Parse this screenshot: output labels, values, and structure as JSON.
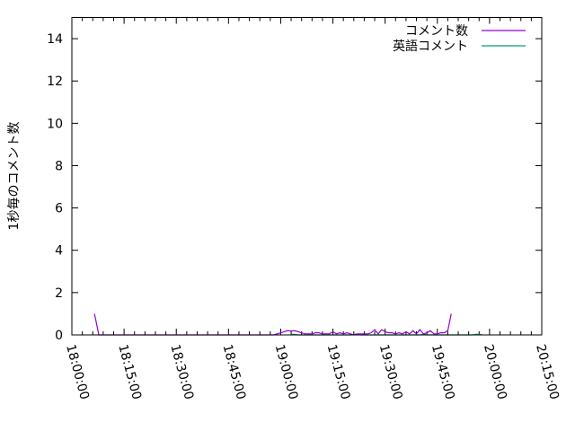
{
  "chart_data": {
    "type": "line",
    "title": "",
    "xlabel": "",
    "ylabel": "1秒毎のコメント数",
    "xlim": [
      "18:00:00",
      "20:15:00"
    ],
    "ylim": [
      0,
      15
    ],
    "x_ticks": [
      "18:00:00",
      "18:15:00",
      "18:30:00",
      "18:45:00",
      "19:00:00",
      "19:15:00",
      "19:30:00",
      "19:45:00",
      "20:00:00",
      "20:15:00"
    ],
    "y_ticks": [
      "0",
      "2",
      "4",
      "6",
      "8",
      "10",
      "12",
      "14"
    ],
    "grid": false,
    "legend_position": "top-right",
    "series": [
      {
        "name": "コメント数",
        "color": "#9400d3",
        "points": [
          [
            "18:06:30",
            1
          ],
          [
            "18:07:45",
            0
          ],
          [
            "18:58:00",
            0
          ],
          [
            "18:59:00",
            0.05
          ],
          [
            "19:00:00",
            0.1
          ],
          [
            "19:01:00",
            0.15
          ],
          [
            "19:02:00",
            0.2
          ],
          [
            "19:03:00",
            0.18
          ],
          [
            "19:04:00",
            0.2
          ],
          [
            "19:05:00",
            0.15
          ],
          [
            "19:06:00",
            0.1
          ],
          [
            "19:07:00",
            0.05
          ],
          [
            "19:08:00",
            0.05
          ],
          [
            "19:09:00",
            0.05
          ],
          [
            "19:10:00",
            0.1
          ],
          [
            "19:11:00",
            0.1
          ],
          [
            "19:12:00",
            0.05
          ],
          [
            "19:13:00",
            0.05
          ],
          [
            "19:14:00",
            0.05
          ],
          [
            "19:15:00",
            0.15
          ],
          [
            "19:16:00",
            0.05
          ],
          [
            "19:17:00",
            0.1
          ],
          [
            "19:18:00",
            0.05
          ],
          [
            "19:19:00",
            0.1
          ],
          [
            "19:20:00",
            0.05
          ],
          [
            "19:21:00",
            0
          ],
          [
            "19:22:00",
            0.05
          ],
          [
            "19:23:00",
            0.05
          ],
          [
            "19:24:00",
            0.05
          ],
          [
            "19:25:00",
            0.05
          ],
          [
            "19:26:00",
            0.1
          ],
          [
            "19:27:00",
            0.25
          ],
          [
            "19:28:00",
            0.05
          ],
          [
            "19:29:00",
            0.25
          ],
          [
            "19:30:00",
            0.15
          ],
          [
            "19:31:00",
            0.1
          ],
          [
            "19:32:00",
            0.1
          ],
          [
            "19:33:00",
            0.05
          ],
          [
            "19:34:00",
            0.1
          ],
          [
            "19:35:00",
            0.05
          ],
          [
            "19:36:00",
            0.15
          ],
          [
            "19:37:00",
            0.05
          ],
          [
            "19:38:00",
            0.2
          ],
          [
            "19:39:00",
            0.05
          ],
          [
            "19:40:00",
            0.25
          ],
          [
            "19:41:00",
            0.05
          ],
          [
            "19:42:00",
            0.1
          ],
          [
            "19:43:00",
            0.2
          ],
          [
            "19:44:00",
            0.05
          ],
          [
            "19:45:00",
            0.05
          ],
          [
            "19:46:00",
            0.1
          ],
          [
            "19:47:00",
            0.1
          ],
          [
            "19:48:00",
            0.2
          ],
          [
            "19:49:00",
            1
          ]
        ]
      },
      {
        "name": "英語コメント",
        "color": "#009e73",
        "points": [
          [
            "19:03:00",
            0.03
          ],
          [
            "19:04:00",
            0.03
          ],
          [
            "19:05:00",
            0
          ],
          [
            "19:20:00",
            0
          ],
          [
            "19:21:00",
            0.03
          ],
          [
            "19:22:00",
            0.03
          ],
          [
            "19:23:00",
            0
          ],
          [
            "19:40:00",
            0
          ],
          [
            "19:41:00",
            0.03
          ],
          [
            "19:42:00",
            0
          ],
          [
            "19:55:00",
            0
          ],
          [
            "19:56:00",
            0.03
          ],
          [
            "19:57:00",
            0.03
          ],
          [
            "19:58:00",
            0
          ]
        ]
      }
    ]
  }
}
